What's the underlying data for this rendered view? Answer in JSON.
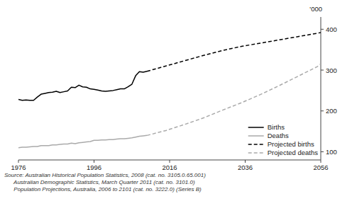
{
  "chart_data": {
    "type": "line",
    "ylabel": "'000",
    "source": "Source: Australian Historical Population Statistics, 2008 (cat. no. 3105.0.65.001)\n      Australian Demographic Statistics, March Quarter 2011 (cat. no. 3101.0)\n      Population Projections, Australia, 2006 to 2101 (cat. no. 3222.0) (Series B)",
    "xlim": [
      1976,
      2056
    ],
    "ylim": [
      80,
      430
    ],
    "xticks": [
      1976,
      1996,
      2016,
      2036,
      2056
    ],
    "yticks": [
      100,
      200,
      300,
      400
    ],
    "grid": false,
    "legend": "lower right",
    "series": [
      {
        "name": "Births",
        "color": "#000000",
        "line_style": "solid",
        "x": [
          1976,
          1977,
          1978,
          1979,
          1980,
          1981,
          1982,
          1983,
          1984,
          1985,
          1986,
          1987,
          1988,
          1989,
          1990,
          1991,
          1992,
          1993,
          1994,
          1995,
          1996,
          1997,
          1998,
          1999,
          2000,
          2001,
          2002,
          2003,
          2004,
          2005,
          2006,
          2007,
          2008,
          2009,
          2010
        ],
        "values": [
          228,
          226,
          227,
          226,
          226,
          234,
          241,
          243,
          245,
          246,
          248,
          245,
          247,
          249,
          258,
          257,
          263,
          259,
          258,
          254,
          253,
          251,
          249,
          248,
          249,
          250,
          252,
          254,
          254,
          259,
          265,
          286,
          296,
          295,
          297
        ]
      },
      {
        "name": "Deaths",
        "color": "#aaaaaa",
        "line_style": "solid",
        "x": [
          1976,
          1977,
          1978,
          1979,
          1980,
          1981,
          1982,
          1983,
          1984,
          1985,
          1986,
          1987,
          1988,
          1989,
          1990,
          1991,
          1992,
          1993,
          1994,
          1995,
          1996,
          1997,
          1998,
          1999,
          2000,
          2001,
          2002,
          2003,
          2004,
          2005,
          2006,
          2007,
          2008,
          2009,
          2010
        ],
        "values": [
          110,
          111,
          111,
          112,
          113,
          113,
          115,
          115,
          115,
          117,
          117,
          118,
          119,
          119,
          121,
          120,
          122,
          123,
          124,
          125,
          128,
          128,
          129,
          129,
          130,
          130,
          131,
          132,
          132,
          133,
          134,
          136,
          138,
          139,
          140
        ]
      },
      {
        "name": "Projected births",
        "color": "#000000",
        "line_style": "dashed",
        "x": [
          2010,
          2015,
          2020,
          2025,
          2030,
          2035,
          2040,
          2045,
          2050,
          2055,
          2056
        ],
        "values": [
          297,
          310,
          323,
          336,
          348,
          358,
          366,
          374,
          382,
          390,
          392
        ]
      },
      {
        "name": "Projected deaths",
        "color": "#aaaaaa",
        "line_style": "dashed",
        "x": [
          2010,
          2015,
          2020,
          2025,
          2030,
          2035,
          2040,
          2045,
          2050,
          2055,
          2056
        ],
        "values": [
          140,
          152,
          167,
          183,
          202,
          220,
          240,
          262,
          285,
          308,
          315
        ]
      }
    ]
  }
}
